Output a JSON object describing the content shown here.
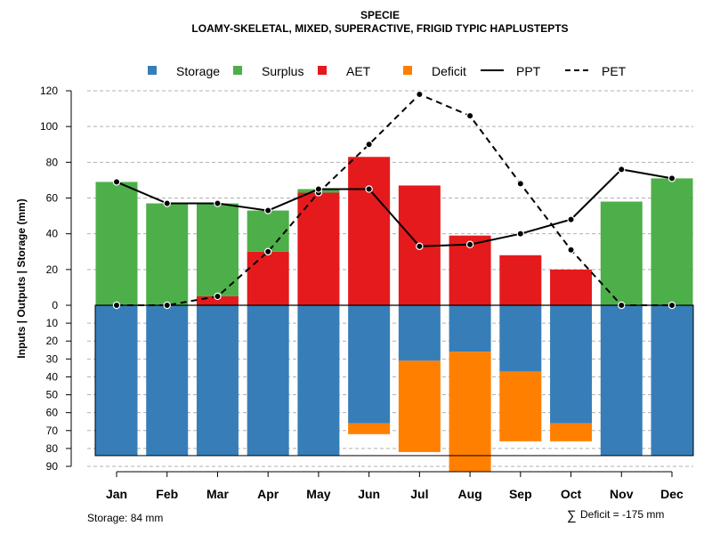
{
  "chart_data": {
    "type": "bar",
    "title": "SPECIE",
    "subtitle": "LOAMY-SKELETAL, MIXED, SUPERACTIVE, FRIGID TYPIC HAPLUSTEPTS",
    "ylabel": "Inputs | Outputs | Storage    (mm)",
    "categories": [
      "Jan",
      "Feb",
      "Mar",
      "Apr",
      "May",
      "Jun",
      "Jul",
      "Aug",
      "Sep",
      "Oct",
      "Nov",
      "Dec"
    ],
    "upper_ylim": [
      0,
      120
    ],
    "upper_ticks": [
      "0",
      "20",
      "40",
      "60",
      "80",
      "100",
      "120"
    ],
    "lower_ylim": [
      0,
      90
    ],
    "lower_ticks": [
      "0",
      "10",
      "20",
      "30",
      "40",
      "50",
      "60",
      "70",
      "80",
      "90"
    ],
    "legend": {
      "storage": "Storage",
      "surplus": "Surplus",
      "aet": "AET",
      "deficit": "Deficit",
      "ppt": "PPT",
      "pet": "PET"
    },
    "colors": {
      "storage": "#377EB8",
      "surplus": "#4DAF4A",
      "aet": "#E41A1C",
      "deficit": "#FF7F00"
    },
    "series": [
      {
        "name": "AET",
        "values": [
          0,
          0,
          5,
          30,
          63,
          83,
          67,
          39,
          28,
          20,
          0,
          0
        ]
      },
      {
        "name": "Surplus",
        "values": [
          69,
          57,
          52,
          23,
          2,
          0,
          0,
          0,
          0,
          0,
          58,
          71
        ]
      },
      {
        "name": "Storage",
        "values": [
          84,
          84,
          84,
          84,
          84,
          66,
          31,
          26,
          37,
          66,
          84,
          84
        ]
      },
      {
        "name": "Deficit",
        "values": [
          0,
          0,
          0,
          0,
          0,
          6,
          51,
          67,
          39,
          10,
          0,
          0
        ]
      },
      {
        "name": "PPT",
        "values": [
          69,
          57,
          57,
          53,
          65,
          65,
          33,
          34,
          40,
          48,
          76,
          71
        ]
      },
      {
        "name": "PET",
        "values": [
          0,
          0,
          5,
          30,
          63,
          90,
          118,
          106,
          68,
          31,
          0,
          0
        ]
      }
    ]
  },
  "footer": {
    "storage_note": "Storage: 84 mm",
    "deficit_symbol": "∑",
    "deficit_note": "Deficit = -175 mm"
  }
}
